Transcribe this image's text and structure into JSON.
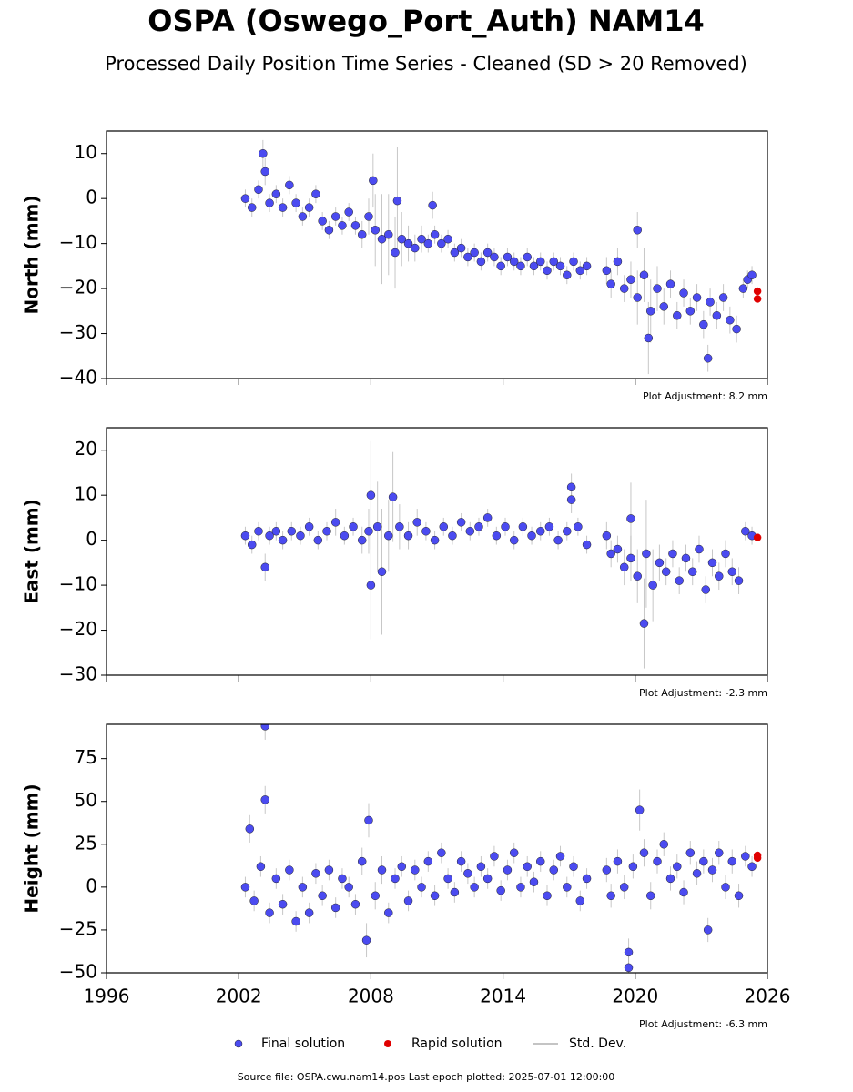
{
  "title": "OSPA (Oswego_Port_Auth) NAM14",
  "subtitle": "Processed Daily Position Time Series - Cleaned (SD > 20 Removed)",
  "source": "Source file: OSPA.cwu.nam14.pos  Last epoch plotted: 2025-07-01 12:00:00",
  "stddev_label": "Std. Dev.",
  "stddev_color": "#b0b0b0",
  "chart_data": [
    {
      "type": "scatter",
      "ylabel": "North (mm)",
      "annotation": "Plot Adjustment: 8.2 mm",
      "xlim": [
        1996,
        2026
      ],
      "xticks": [
        1996,
        2002,
        2008,
        2014,
        2020,
        2026
      ],
      "show_xtick_labels": false,
      "ylim": [
        -40,
        15
      ],
      "yticks": [
        {
          "value": -40,
          "label": "−40"
        },
        {
          "value": -30,
          "label": "−30"
        },
        {
          "value": -20,
          "label": "−20"
        },
        {
          "value": -10,
          "label": "−10"
        },
        0,
        10
      ],
      "series": [
        {
          "name": "Final solution",
          "color": "#4b4bf0",
          "x": [
            2002.3,
            2002.6,
            2002.9,
            2003.1,
            2003.2,
            2003.4,
            2003.7,
            2004.0,
            2004.3,
            2004.6,
            2004.9,
            2005.2,
            2005.5,
            2005.8,
            2006.1,
            2006.4,
            2006.7,
            2007.0,
            2007.3,
            2007.6,
            2007.9,
            2008.1,
            2008.2,
            2008.5,
            2008.8,
            2009.1,
            2009.2,
            2009.4,
            2009.7,
            2010.0,
            2010.3,
            2010.6,
            2010.8,
            2010.9,
            2011.2,
            2011.5,
            2011.8,
            2012.1,
            2012.4,
            2012.7,
            2013.0,
            2013.3,
            2013.6,
            2013.9,
            2014.2,
            2014.5,
            2014.8,
            2015.1,
            2015.4,
            2015.7,
            2016.0,
            2016.3,
            2016.6,
            2016.9,
            2017.2,
            2017.5,
            2017.8,
            2018.7,
            2018.9,
            2019.2,
            2019.5,
            2019.8,
            2020.1,
            2020.1,
            2020.4,
            2020.6,
            2020.7,
            2021.0,
            2021.3,
            2021.6,
            2021.9,
            2022.2,
            2022.5,
            2022.8,
            2023.1,
            2023.3,
            2023.4,
            2023.7,
            2024.0,
            2024.3,
            2024.6,
            2024.9,
            2025.1,
            2025.3
          ],
          "values": [
            0,
            -2,
            2,
            10,
            6,
            -1,
            1,
            -2,
            3,
            -1,
            -4,
            -2,
            1,
            -5,
            -7,
            -4,
            -6,
            -3,
            -6,
            -8,
            -4,
            4,
            -7,
            -9,
            -8,
            -12,
            -0.5,
            -9,
            -10,
            -11,
            -9,
            -10,
            -1.5,
            -8,
            -10,
            -9,
            -12,
            -11,
            -13,
            -12,
            -14,
            -12,
            -13,
            -15,
            -13,
            -14,
            -15,
            -13,
            -15,
            -14,
            -16,
            -14,
            -15,
            -17,
            -14,
            -16,
            -15,
            -16,
            -19,
            -14,
            -20,
            -18,
            -22,
            -7,
            -17,
            -31,
            -25,
            -20,
            -24,
            -19,
            -26,
            -21,
            -25,
            -22,
            -28,
            -35.5,
            -23,
            -26,
            -22,
            -27,
            -29,
            -20,
            -18,
            -17
          ],
          "errors": [
            2,
            2,
            2,
            3,
            3,
            2,
            2,
            2,
            2,
            2,
            2,
            2,
            2,
            2,
            2,
            2,
            2,
            2,
            2,
            3,
            4,
            6,
            8,
            10,
            9,
            8,
            12,
            6,
            4,
            3,
            3,
            2,
            3,
            2,
            2,
            2,
            2,
            2,
            2,
            2,
            2,
            2,
            2,
            2,
            2,
            2,
            2,
            2,
            2,
            2,
            2,
            2,
            2,
            2,
            2,
            2,
            2,
            3,
            3,
            3,
            3,
            4,
            6,
            4,
            6,
            8,
            7,
            5,
            4,
            3,
            3,
            3,
            3,
            3,
            3,
            3,
            3,
            3,
            3,
            3,
            3,
            2,
            2,
            2
          ]
        },
        {
          "name": "Rapid solution",
          "color": "#e00000",
          "x": [
            2025.55,
            2025.55
          ],
          "values": [
            -20.6,
            -22.3
          ]
        }
      ]
    },
    {
      "type": "scatter",
      "ylabel": "East (mm)",
      "annotation": "Plot Adjustment: -2.3 mm",
      "xlim": [
        1996,
        2026
      ],
      "xticks": [
        1996,
        2002,
        2008,
        2014,
        2020,
        2026
      ],
      "show_xtick_labels": false,
      "ylim": [
        -30,
        25
      ],
      "yticks": [
        {
          "value": -30,
          "label": "−30"
        },
        {
          "value": -20,
          "label": "−20"
        },
        {
          "value": -10,
          "label": "−10"
        },
        0,
        10,
        20
      ],
      "series": [
        {
          "name": "Final solution",
          "color": "#4b4bf0",
          "x": [
            2002.3,
            2002.6,
            2002.9,
            2003.2,
            2003.4,
            2003.7,
            2004.0,
            2004.4,
            2004.8,
            2005.2,
            2005.6,
            2006.0,
            2006.4,
            2006.8,
            2007.2,
            2007.6,
            2007.9,
            2008.0,
            2008.0,
            2008.3,
            2008.5,
            2008.8,
            2009.0,
            2009.3,
            2009.7,
            2010.1,
            2010.5,
            2010.9,
            2011.3,
            2011.7,
            2012.1,
            2012.5,
            2012.9,
            2013.3,
            2013.7,
            2014.1,
            2014.5,
            2014.9,
            2015.3,
            2015.7,
            2016.1,
            2016.5,
            2016.9,
            2017.1,
            2017.1,
            2017.4,
            2017.8,
            2018.7,
            2018.9,
            2019.2,
            2019.5,
            2019.8,
            2019.8,
            2020.1,
            2020.4,
            2020.5,
            2020.8,
            2021.1,
            2021.4,
            2021.7,
            2022.0,
            2022.3,
            2022.6,
            2022.9,
            2023.2,
            2023.5,
            2023.8,
            2024.1,
            2024.4,
            2024.7,
            2025.0,
            2025.3
          ],
          "values": [
            1,
            -1,
            2,
            -6,
            1,
            2,
            0,
            2,
            1,
            3,
            0,
            2,
            4,
            1,
            3,
            0,
            2,
            10,
            -10,
            3,
            -7,
            1,
            9.6,
            3,
            1,
            4,
            2,
            0,
            3,
            1,
            4,
            2,
            3,
            5,
            1,
            3,
            0,
            3,
            1,
            2,
            3,
            0,
            2,
            11.8,
            9,
            3,
            -1,
            1,
            -3,
            -2,
            -6,
            -4,
            4.8,
            -8,
            -18.5,
            -3,
            -10,
            -5,
            -7,
            -3,
            -9,
            -4,
            -7,
            -2,
            -11,
            -5,
            -8,
            -3,
            -7,
            -9,
            2,
            1
          ],
          "errors": [
            2,
            2,
            2,
            3,
            2,
            2,
            2,
            2,
            2,
            2,
            2,
            2,
            3,
            2,
            2,
            3,
            5,
            12,
            12,
            10,
            14,
            8,
            10,
            5,
            3,
            3,
            2,
            2,
            2,
            2,
            2,
            2,
            2,
            2,
            2,
            2,
            2,
            2,
            2,
            2,
            2,
            2,
            2,
            3,
            3,
            2,
            2,
            3,
            3,
            3,
            4,
            5,
            8,
            6,
            10,
            12,
            8,
            4,
            3,
            3,
            3,
            3,
            3,
            3,
            3,
            3,
            3,
            3,
            3,
            3,
            2,
            2
          ]
        },
        {
          "name": "Rapid solution",
          "color": "#e00000",
          "x": [
            2025.55
          ],
          "values": [
            0.6
          ]
        }
      ]
    },
    {
      "type": "scatter",
      "ylabel": "Height (mm)",
      "annotation": "Plot Adjustment: -6.3 mm",
      "xlim": [
        1996,
        2026
      ],
      "xticks": [
        1996,
        2002,
        2008,
        2014,
        2020,
        2026
      ],
      "show_xtick_labels": true,
      "ylim": [
        -50,
        95
      ],
      "yticks": [
        {
          "value": -50,
          "label": "−50"
        },
        {
          "value": -25,
          "label": "−25"
        },
        0,
        25,
        50,
        75
      ],
      "series": [
        {
          "name": "Final solution",
          "color": "#4b4bf0",
          "x": [
            2002.3,
            2002.5,
            2002.7,
            2003.0,
            2003.2,
            2003.2,
            2003.4,
            2003.7,
            2004.0,
            2004.3,
            2004.6,
            2004.9,
            2005.2,
            2005.5,
            2005.8,
            2006.1,
            2006.4,
            2006.7,
            2007.0,
            2007.3,
            2007.6,
            2007.8,
            2007.9,
            2008.2,
            2008.5,
            2008.8,
            2009.1,
            2009.4,
            2009.7,
            2010.0,
            2010.3,
            2010.6,
            2010.9,
            2011.2,
            2011.5,
            2011.8,
            2012.1,
            2012.4,
            2012.7,
            2013.0,
            2013.3,
            2013.6,
            2013.9,
            2014.2,
            2014.5,
            2014.8,
            2015.1,
            2015.4,
            2015.7,
            2016.0,
            2016.3,
            2016.6,
            2016.9,
            2017.2,
            2017.5,
            2017.8,
            2018.7,
            2018.9,
            2019.2,
            2019.5,
            2019.7,
            2019.7,
            2019.9,
            2020.2,
            2020.4,
            2020.7,
            2021.0,
            2021.3,
            2021.6,
            2021.9,
            2022.2,
            2022.5,
            2022.8,
            2023.1,
            2023.3,
            2023.5,
            2023.8,
            2024.1,
            2024.4,
            2024.7,
            2025.0,
            2025.3
          ],
          "values": [
            0,
            34,
            -8,
            12,
            94,
            51,
            -15,
            5,
            -10,
            10,
            -20,
            0,
            -15,
            8,
            -5,
            10,
            -12,
            5,
            0,
            -10,
            15,
            -31,
            39,
            -5,
            10,
            -15,
            5,
            12,
            -8,
            10,
            0,
            15,
            -5,
            20,
            5,
            -3,
            15,
            8,
            0,
            12,
            5,
            18,
            -2,
            10,
            20,
            0,
            12,
            3,
            15,
            -5,
            10,
            18,
            0,
            12,
            -8,
            5,
            10,
            -5,
            15,
            0,
            -47,
            -38,
            12,
            45,
            20,
            -5,
            15,
            25,
            5,
            12,
            -3,
            20,
            8,
            15,
            -25,
            10,
            20,
            0,
            15,
            -5,
            18,
            12
          ],
          "errors": [
            6,
            8,
            6,
            6,
            8,
            8,
            6,
            6,
            6,
            6,
            6,
            6,
            6,
            6,
            6,
            6,
            6,
            6,
            6,
            6,
            8,
            10,
            10,
            8,
            8,
            6,
            6,
            6,
            6,
            6,
            6,
            6,
            6,
            6,
            6,
            6,
            6,
            6,
            6,
            6,
            6,
            6,
            6,
            6,
            6,
            6,
            6,
            6,
            6,
            6,
            6,
            6,
            6,
            6,
            6,
            6,
            7,
            7,
            7,
            7,
            8,
            8,
            7,
            12,
            8,
            8,
            7,
            7,
            7,
            7,
            7,
            7,
            7,
            7,
            7,
            7,
            7,
            7,
            7,
            7,
            6,
            6
          ]
        },
        {
          "name": "Rapid solution",
          "color": "#e00000",
          "x": [
            2025.55,
            2025.55
          ],
          "values": [
            17,
            18.5
          ]
        }
      ]
    }
  ]
}
